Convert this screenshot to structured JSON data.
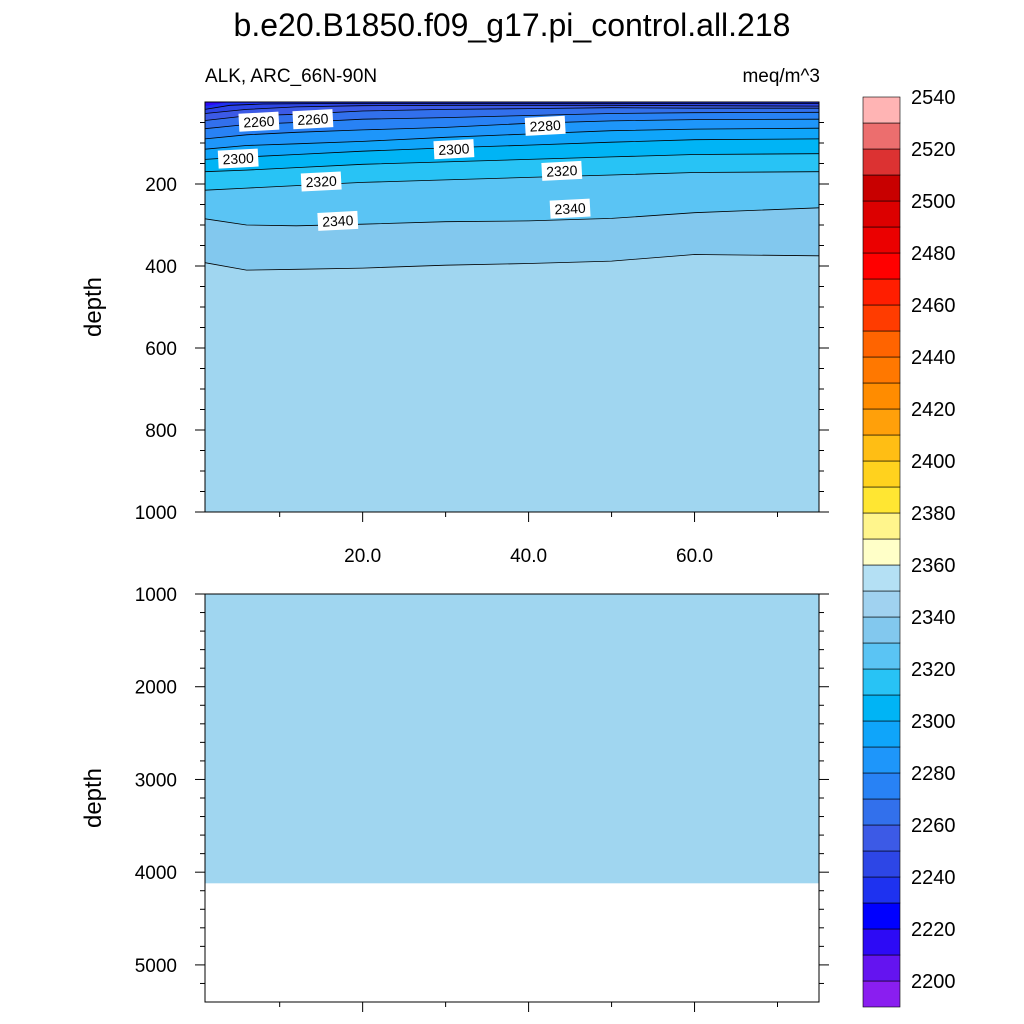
{
  "title": "b.e20.B1850.f09_g17.pi_control.all.218",
  "subtitle_left": "ALK, ARC_66N-90N",
  "subtitle_right": "meq/m^3",
  "colors": {
    "colorbar": [
      "#8a1ef0",
      "#6414f0",
      "#2d0af5",
      "#0000ff",
      "#1e32f0",
      "#2d46e6",
      "#3c5ae6",
      "#3270ec",
      "#2882f5",
      "#1e96fa",
      "#0fa5fa",
      "#00b4f5",
      "#28c3f5",
      "#5ac4f4",
      "#82c8ee",
      "#a0d2f0",
      "#b4e0f4",
      "#ffffc8",
      "#fff58c",
      "#ffe632",
      "#ffd21e",
      "#ffbe14",
      "#ffa00a",
      "#ff8c00",
      "#ff7800",
      "#ff6400",
      "#ff3c00",
      "#ff1e00",
      "#ff0000",
      "#eb0000",
      "#dc0000",
      "#c80000",
      "#dc3232",
      "#ec6e6e",
      "#ffb4b4"
    ],
    "background": "#a0d6f0"
  },
  "chart_data": [
    {
      "type": "contour",
      "panel": "upper",
      "variable": "ALK",
      "region": "ARC_66N-90N",
      "units": "meq/m^3",
      "xlabel": "",
      "ylabel": "depth",
      "xlim": [
        1,
        75
      ],
      "ylim": [
        1000,
        0
      ],
      "xticks": [
        20.0,
        40.0,
        60.0
      ],
      "xtick_labels": [
        "20.0",
        "40.0",
        "60.0"
      ],
      "yticks": [
        200,
        400,
        600,
        800,
        1000
      ],
      "ytick_labels": [
        "200",
        "400",
        "600",
        "800",
        "1000"
      ],
      "contour_interval": 10,
      "contours": [
        {
          "level": 2240,
          "x": [
            1,
            4,
            8,
            14,
            22,
            32,
            42,
            52,
            62,
            75
          ],
          "depth": [
            18,
            8,
            5,
            4,
            4,
            4,
            4,
            4,
            4,
            4
          ]
        },
        {
          "level": 2250,
          "x": [
            1,
            6,
            12,
            20,
            30,
            40,
            50,
            60,
            75
          ],
          "depth": [
            28,
            18,
            12,
            9,
            8,
            8,
            8,
            9,
            10
          ]
        },
        {
          "level": 2260,
          "x": [
            1,
            6,
            12,
            20,
            30,
            40,
            50,
            60,
            75
          ],
          "depth": [
            45,
            34,
            30,
            22,
            18,
            16,
            14,
            15,
            15
          ]
        },
        {
          "level": 2270,
          "x": [
            1,
            6,
            12,
            20,
            30,
            40,
            50,
            60,
            75
          ],
          "depth": [
            65,
            55,
            50,
            42,
            38,
            33,
            28,
            26,
            25
          ]
        },
        {
          "level": 2280,
          "x": [
            1,
            6,
            12,
            20,
            30,
            40,
            50,
            60,
            75
          ],
          "depth": [
            90,
            80,
            74,
            68,
            62,
            52,
            46,
            43,
            42
          ]
        },
        {
          "level": 2290,
          "x": [
            1,
            6,
            12,
            20,
            30,
            40,
            50,
            60,
            75
          ],
          "depth": [
            115,
            106,
            102,
            96,
            86,
            78,
            70,
            66,
            64
          ]
        },
        {
          "level": 2300,
          "x": [
            1,
            6,
            12,
            20,
            30,
            40,
            50,
            60,
            75
          ],
          "depth": [
            140,
            134,
            128,
            120,
            112,
            105,
            98,
            92,
            90
          ]
        },
        {
          "level": 2310,
          "x": [
            1,
            6,
            12,
            20,
            30,
            40,
            50,
            60,
            75
          ],
          "depth": [
            170,
            166,
            160,
            152,
            146,
            140,
            134,
            128,
            126
          ]
        },
        {
          "level": 2320,
          "x": [
            1,
            6,
            12,
            20,
            30,
            40,
            50,
            60,
            75
          ],
          "depth": [
            215,
            210,
            204,
            196,
            190,
            184,
            178,
            172,
            170
          ]
        },
        {
          "level": 2330,
          "x": [
            1,
            6,
            12,
            20,
            30,
            40,
            50,
            60,
            75
          ],
          "depth": [
            285,
            300,
            302,
            298,
            292,
            290,
            284,
            270,
            258
          ]
        },
        {
          "level": 2340,
          "x": [
            1,
            6,
            12,
            20,
            30,
            40,
            50,
            60,
            75
          ],
          "depth": [
            392,
            410,
            408,
            405,
            398,
            394,
            388,
            372,
            375
          ]
        }
      ],
      "contour_labels": [
        {
          "text": "2260",
          "x": 7.5,
          "depth": 48
        },
        {
          "text": "2260",
          "x": 14,
          "depth": 42
        },
        {
          "text": "2300",
          "x": 5,
          "depth": 138
        },
        {
          "text": "2300",
          "x": 31,
          "depth": 115
        },
        {
          "text": "2280",
          "x": 42,
          "depth": 58
        },
        {
          "text": "2320",
          "x": 15,
          "depth": 194
        },
        {
          "text": "2320",
          "x": 44,
          "depth": 168
        },
        {
          "text": "2340",
          "x": 17,
          "depth": 290
        },
        {
          "text": "2340",
          "x": 45,
          "depth": 260
        }
      ]
    },
    {
      "type": "contour",
      "panel": "lower",
      "variable": "ALK",
      "units": "meq/m^3",
      "xlabel": "",
      "ylabel": "depth",
      "xlim": [
        1,
        75
      ],
      "ylim": [
        5400,
        1000
      ],
      "yticks": [
        1000,
        2000,
        3000,
        4000,
        5000
      ],
      "ytick_labels": [
        "1000",
        "2000",
        "3000",
        "4000",
        "5000"
      ],
      "filled_range": [
        2350,
        2360
      ],
      "ocean_bottom_depth": 4120
    }
  ],
  "colorbar": {
    "levels": [
      2190,
      2200,
      2210,
      2220,
      2230,
      2240,
      2250,
      2260,
      2270,
      2280,
      2290,
      2300,
      2310,
      2320,
      2330,
      2340,
      2350,
      2360,
      2370,
      2380,
      2390,
      2400,
      2410,
      2420,
      2430,
      2440,
      2450,
      2460,
      2470,
      2480,
      2490,
      2500,
      2510,
      2520,
      2530,
      2540
    ],
    "tick_labels": [
      "2200",
      "2220",
      "2240",
      "2260",
      "2280",
      "2300",
      "2320",
      "2340",
      "2360",
      "2380",
      "2400",
      "2420",
      "2440",
      "2460",
      "2480",
      "2500",
      "2520",
      "2540"
    ]
  }
}
